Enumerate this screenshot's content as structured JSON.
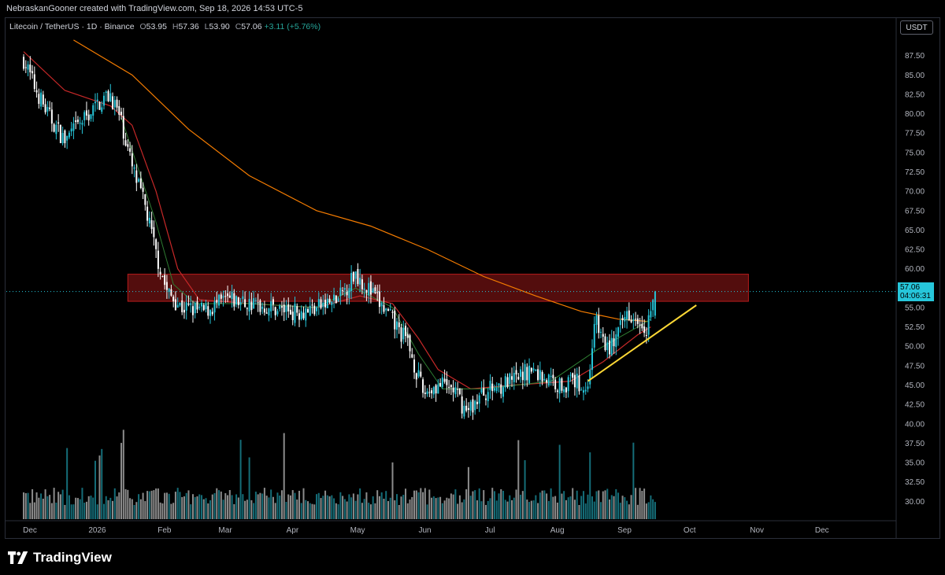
{
  "header": {
    "attribution": "NebraskanGooner created with TradingView.com, Sep 18, 2026 14:53 UTC-5"
  },
  "legend": {
    "symbol": "Litecoin / TetherUS · 1D · Binance",
    "o_label": "O",
    "o_value": "53.95",
    "h_label": "H",
    "h_value": "57.36",
    "l_label": "L",
    "l_value": "53.90",
    "c_label": "C",
    "c_value": "57.06",
    "change": "+3.11 (+5.76%)"
  },
  "currency_button": "USDT",
  "last_price": {
    "price": "57.06",
    "countdown": "04:06:31"
  },
  "brand": "TradingView",
  "colors": {
    "up": "#26c6da",
    "down": "#ffffff",
    "ma_long": "#f57c00",
    "ma_mid": "#c62828",
    "ma_short": "#2e7d32",
    "zone": "#b71c1c",
    "trendline": "#fdd835"
  },
  "chart_data": {
    "type": "candlestick",
    "symbol": "LTCUSDT",
    "timeframe": "1D",
    "x_tick_labels": [
      "Dec",
      "2026",
      "Feb",
      "Mar",
      "Apr",
      "May",
      "Jun",
      "Jul",
      "Aug",
      "Sep",
      "Oct",
      "Nov",
      "Dec"
    ],
    "y_tick_labels": [
      "87.50",
      "85.00",
      "82.50",
      "80.00",
      "77.50",
      "75.00",
      "72.50",
      "70.00",
      "67.50",
      "65.00",
      "62.50",
      "60.00",
      "57.50",
      "55.00",
      "52.50",
      "50.00",
      "47.50",
      "45.00",
      "42.50",
      "40.00",
      "37.50",
      "35.00",
      "32.50",
      "30.00"
    ],
    "ylim": [
      27.5,
      90.0
    ],
    "price_path": [
      [
        "2025-12-01",
        87.0
      ],
      [
        "2025-12-06",
        83.5
      ],
      [
        "2025-12-12",
        80.0
      ],
      [
        "2025-12-20",
        76.5
      ],
      [
        "2025-12-28",
        79.0
      ],
      [
        "2026-01-05",
        81.5
      ],
      [
        "2026-01-10",
        82.5
      ],
      [
        "2026-01-15",
        79.0
      ],
      [
        "2026-01-20",
        73.0
      ],
      [
        "2026-01-26",
        68.0
      ],
      [
        "2026-01-31",
        62.0
      ],
      [
        "2026-02-05",
        57.0
      ],
      [
        "2026-02-12",
        55.0
      ],
      [
        "2026-02-22",
        54.5
      ],
      [
        "2026-03-05",
        56.0
      ],
      [
        "2026-03-15",
        55.5
      ],
      [
        "2026-03-25",
        55.0
      ],
      [
        "2026-04-05",
        54.5
      ],
      [
        "2026-04-15",
        55.0
      ],
      [
        "2026-04-25",
        56.0
      ],
      [
        "2026-05-03",
        59.5
      ],
      [
        "2026-05-10",
        57.0
      ],
      [
        "2026-05-18",
        54.0
      ],
      [
        "2026-05-27",
        50.5
      ],
      [
        "2026-06-03",
        44.0
      ],
      [
        "2026-06-10",
        45.0
      ],
      [
        "2026-06-17",
        44.5
      ],
      [
        "2026-06-23",
        41.5
      ],
      [
        "2026-07-01",
        44.0
      ],
      [
        "2026-07-08",
        45.0
      ],
      [
        "2026-07-15",
        45.5
      ],
      [
        "2026-07-22",
        47.0
      ],
      [
        "2026-07-29",
        46.0
      ],
      [
        "2026-08-05",
        45.0
      ],
      [
        "2026-08-12",
        45.5
      ],
      [
        "2026-08-18",
        44.5
      ],
      [
        "2026-08-21",
        53.5
      ],
      [
        "2026-08-27",
        49.5
      ],
      [
        "2026-09-01",
        51.5
      ],
      [
        "2026-09-05",
        54.5
      ],
      [
        "2026-09-10",
        54.0
      ],
      [
        "2026-09-14",
        52.5
      ],
      [
        "2026-09-18",
        57.06
      ]
    ],
    "ma_long_path": [
      [
        "2025-12-24",
        89.5
      ],
      [
        "2026-01-20",
        85.0
      ],
      [
        "2026-02-15",
        78.0
      ],
      [
        "2026-03-15",
        72.0
      ],
      [
        "2026-04-15",
        67.5
      ],
      [
        "2026-05-10",
        65.5
      ],
      [
        "2026-06-05",
        62.5
      ],
      [
        "2026-07-01",
        59.0
      ],
      [
        "2026-07-25",
        56.5
      ],
      [
        "2026-08-15",
        54.5
      ],
      [
        "2026-09-01",
        53.5
      ],
      [
        "2026-09-15",
        53.2
      ]
    ],
    "ma_mid_path": [
      [
        "2025-12-01",
        88.0
      ],
      [
        "2025-12-20",
        83.0
      ],
      [
        "2026-01-10",
        81.0
      ],
      [
        "2026-01-20",
        78.5
      ],
      [
        "2026-01-31",
        70.0
      ],
      [
        "2026-02-10",
        60.0
      ],
      [
        "2026-02-20",
        56.0
      ],
      [
        "2026-03-15",
        55.5
      ],
      [
        "2026-04-15",
        55.0
      ],
      [
        "2026-05-05",
        56.5
      ],
      [
        "2026-05-20",
        55.5
      ],
      [
        "2026-06-01",
        51.0
      ],
      [
        "2026-06-10",
        47.0
      ],
      [
        "2026-06-25",
        44.5
      ],
      [
        "2026-07-15",
        45.0
      ],
      [
        "2026-08-10",
        45.5
      ],
      [
        "2026-08-25",
        48.0
      ],
      [
        "2026-09-10",
        51.5
      ],
      [
        "2026-09-16",
        52.5
      ]
    ],
    "ma_short_path": [
      [
        "2026-01-15",
        79.5
      ],
      [
        "2026-01-31",
        66.0
      ],
      [
        "2026-02-08",
        58.0
      ],
      [
        "2026-02-18",
        55.5
      ],
      [
        "2026-03-15",
        55.5
      ],
      [
        "2026-04-15",
        55.0
      ],
      [
        "2026-05-03",
        57.5
      ],
      [
        "2026-05-20",
        55.0
      ],
      [
        "2026-06-01",
        49.0
      ],
      [
        "2026-06-12",
        44.5
      ],
      [
        "2026-07-01",
        44.5
      ],
      [
        "2026-08-01",
        45.5
      ],
      [
        "2026-08-22",
        49.5
      ],
      [
        "2026-09-10",
        52.5
      ],
      [
        "2026-09-16",
        53.5
      ]
    ],
    "resistance_zone": {
      "from": "2026-01-18",
      "to": "2026-10-31",
      "low": 55.8,
      "high": 59.3
    },
    "trendline": {
      "from": [
        "2026-08-18",
        45.5
      ],
      "to": [
        "2026-10-07",
        55.3
      ]
    },
    "last_price_line": 57.06,
    "grid": false,
    "volume_panel": true
  }
}
